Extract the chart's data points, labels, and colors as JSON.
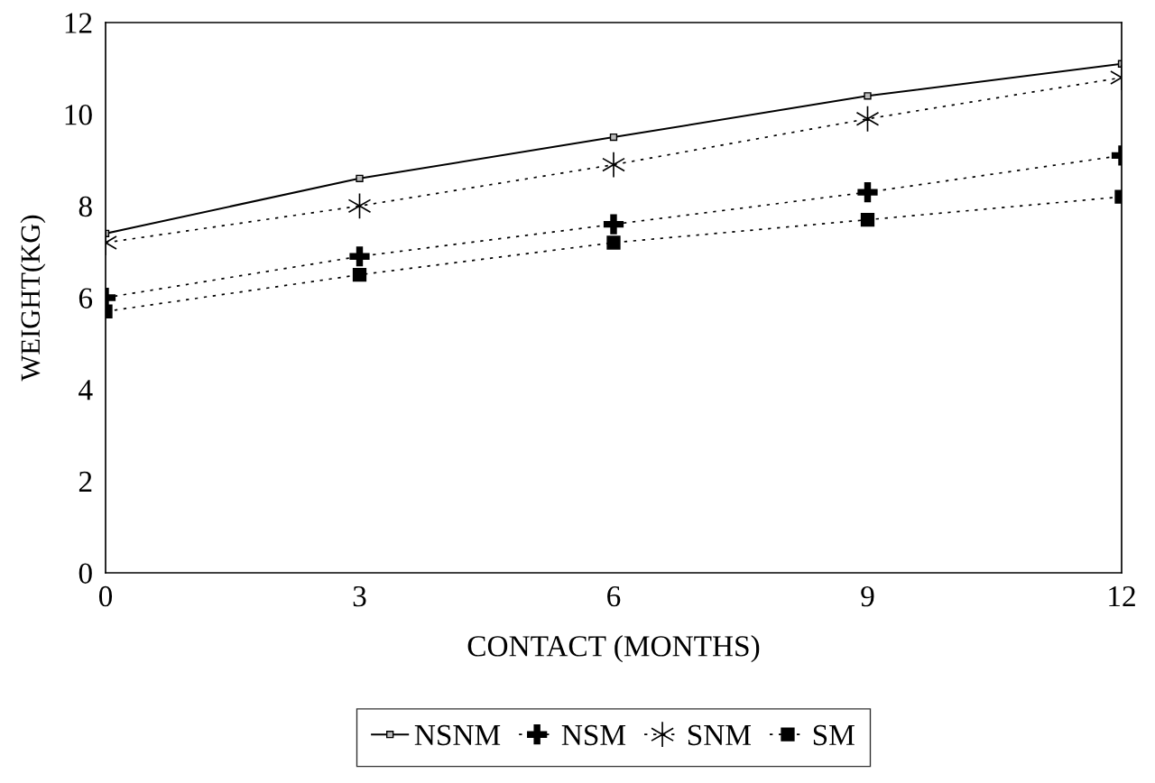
{
  "chart_data": {
    "type": "line",
    "xlabel": "CONTACT (MONTHS)",
    "ylabel": "WEIGHT(KG)",
    "x": [
      0,
      3,
      6,
      9,
      12
    ],
    "series": [
      {
        "name": "NSNM",
        "color": "#000000",
        "values": [
          7.4,
          8.6,
          9.5,
          10.4,
          11.1
        ],
        "marker": "square",
        "line_style": "solid"
      },
      {
        "name": "NSM",
        "color": "#000000",
        "values": [
          6.0,
          6.9,
          7.6,
          8.3,
          9.1
        ],
        "marker": "cross",
        "line_style": "dotted"
      },
      {
        "name": "SNM",
        "color": "#000000",
        "values": [
          7.2,
          8.0,
          8.9,
          9.9,
          10.8
        ],
        "marker": "cross",
        "line_style": "dotted"
      },
      {
        "name": "SM",
        "color": "#000000",
        "values": [
          5.7,
          6.5,
          7.2,
          7.7,
          8.2
        ],
        "marker": "square",
        "line_style": "dotted"
      }
    ],
    "xlim": [
      0,
      12
    ],
    "ylim": [
      0,
      12
    ],
    "xticks": [
      0,
      3,
      6,
      9,
      12
    ],
    "yticks": [
      0,
      2,
      4,
      6,
      8,
      10,
      12
    ],
    "grid": false,
    "legend": "bottom"
  }
}
